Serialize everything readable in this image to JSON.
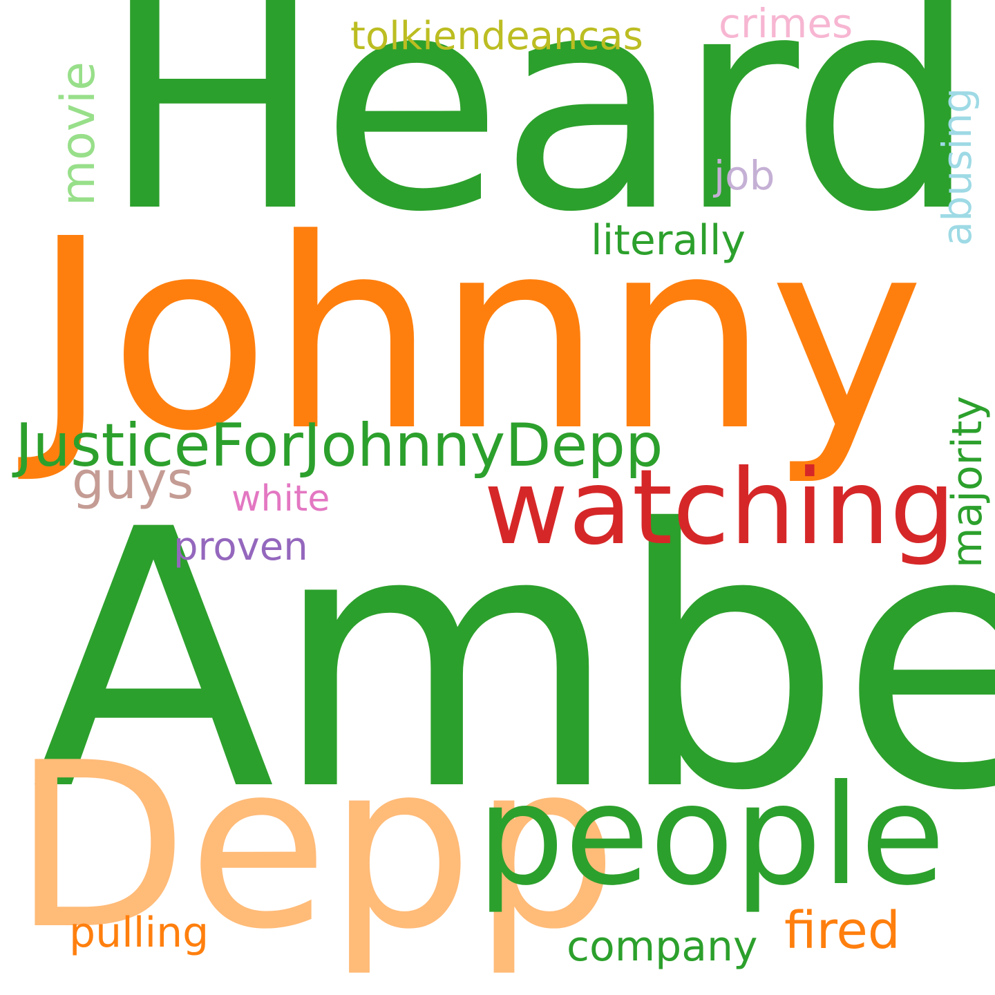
{
  "words": {
    "heard": {
      "text": "Heard",
      "color": "#2ca02c"
    },
    "johnny": {
      "text": "Johnny",
      "color": "#ff7f0e"
    },
    "amber": {
      "text": "Amber",
      "color": "#2ca02c"
    },
    "depp": {
      "text": "Depp",
      "color": "#ffbb78"
    },
    "people": {
      "text": "people",
      "color": "#2ca02c"
    },
    "watching": {
      "text": "watching",
      "color": "#d62728"
    },
    "justice": {
      "text": "JusticeForJohnnyDepp",
      "color": "#2ca02c"
    },
    "guys": {
      "text": "guys",
      "color": "#c49c94"
    },
    "white": {
      "text": "white",
      "color": "#e377c2"
    },
    "proven": {
      "text": "proven",
      "color": "#9467bd"
    },
    "literally": {
      "text": "literally",
      "color": "#2ca02c"
    },
    "job": {
      "text": "job",
      "color": "#c5b0d5"
    },
    "tolkien": {
      "text": "tolkiendeancas",
      "color": "#bcbd22"
    },
    "crimes": {
      "text": "crimes",
      "color": "#f7b6d2"
    },
    "pulling": {
      "text": "pulling",
      "color": "#ff7f0e"
    },
    "company": {
      "text": "company",
      "color": "#2ca02c"
    },
    "fired": {
      "text": "fired",
      "color": "#ff7f0e"
    },
    "movie": {
      "text": "movie",
      "color": "#98df8a"
    },
    "abusing": {
      "text": "abusing",
      "color": "#9edae5"
    },
    "majority": {
      "text": "majority",
      "color": "#2ca02c"
    }
  }
}
